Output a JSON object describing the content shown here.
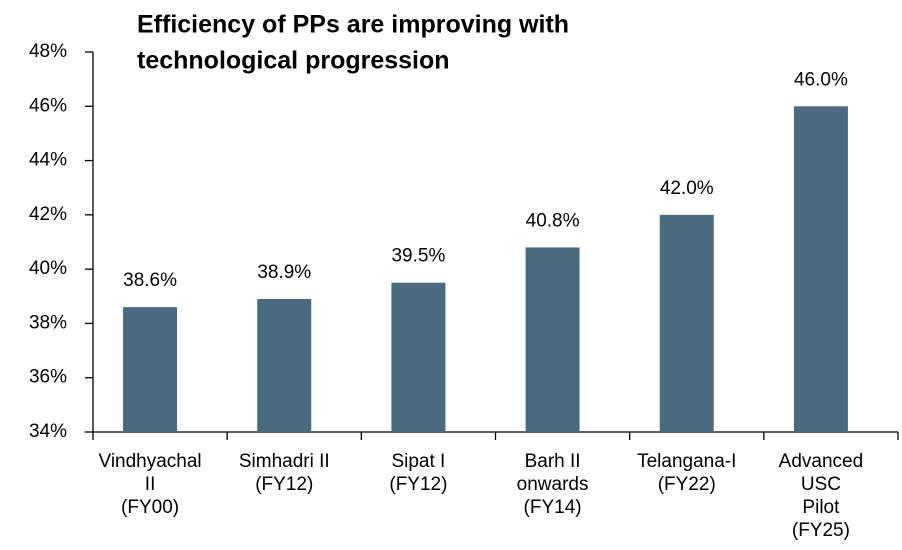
{
  "chart_data": {
    "type": "bar",
    "title": [
      "Efficiency of PPs are improving with",
      "technological progression"
    ],
    "categories": [
      [
        "Vindhyachal",
        "II",
        "(FY00)"
      ],
      [
        "Simhadri II",
        "(FY12)"
      ],
      [
        "Sipat I",
        "(FY12)"
      ],
      [
        "Barh II",
        "onwards",
        "(FY14)"
      ],
      [
        "Telangana-I",
        "(FY22)"
      ],
      [
        "Advanced",
        "USC",
        "Pilot",
        "(FY25)"
      ]
    ],
    "values": [
      38.6,
      38.9,
      39.5,
      40.8,
      42.0,
      46.0
    ],
    "value_labels": [
      "38.6%",
      "38.9%",
      "39.5%",
      "40.8%",
      "42.0%",
      "46.0%"
    ],
    "color": "#4a6a80",
    "ylim": [
      34,
      48
    ],
    "yticks": [
      {
        "value": 34,
        "label": "34%"
      },
      {
        "value": 36,
        "label": "36%"
      },
      {
        "value": 38,
        "label": "38%"
      },
      {
        "value": 40,
        "label": "40%"
      },
      {
        "value": 42,
        "label": "42%"
      },
      {
        "value": 44,
        "label": "44%"
      },
      {
        "value": 46,
        "label": "46%"
      },
      {
        "value": 48,
        "label": "48%"
      }
    ],
    "grid": false
  }
}
